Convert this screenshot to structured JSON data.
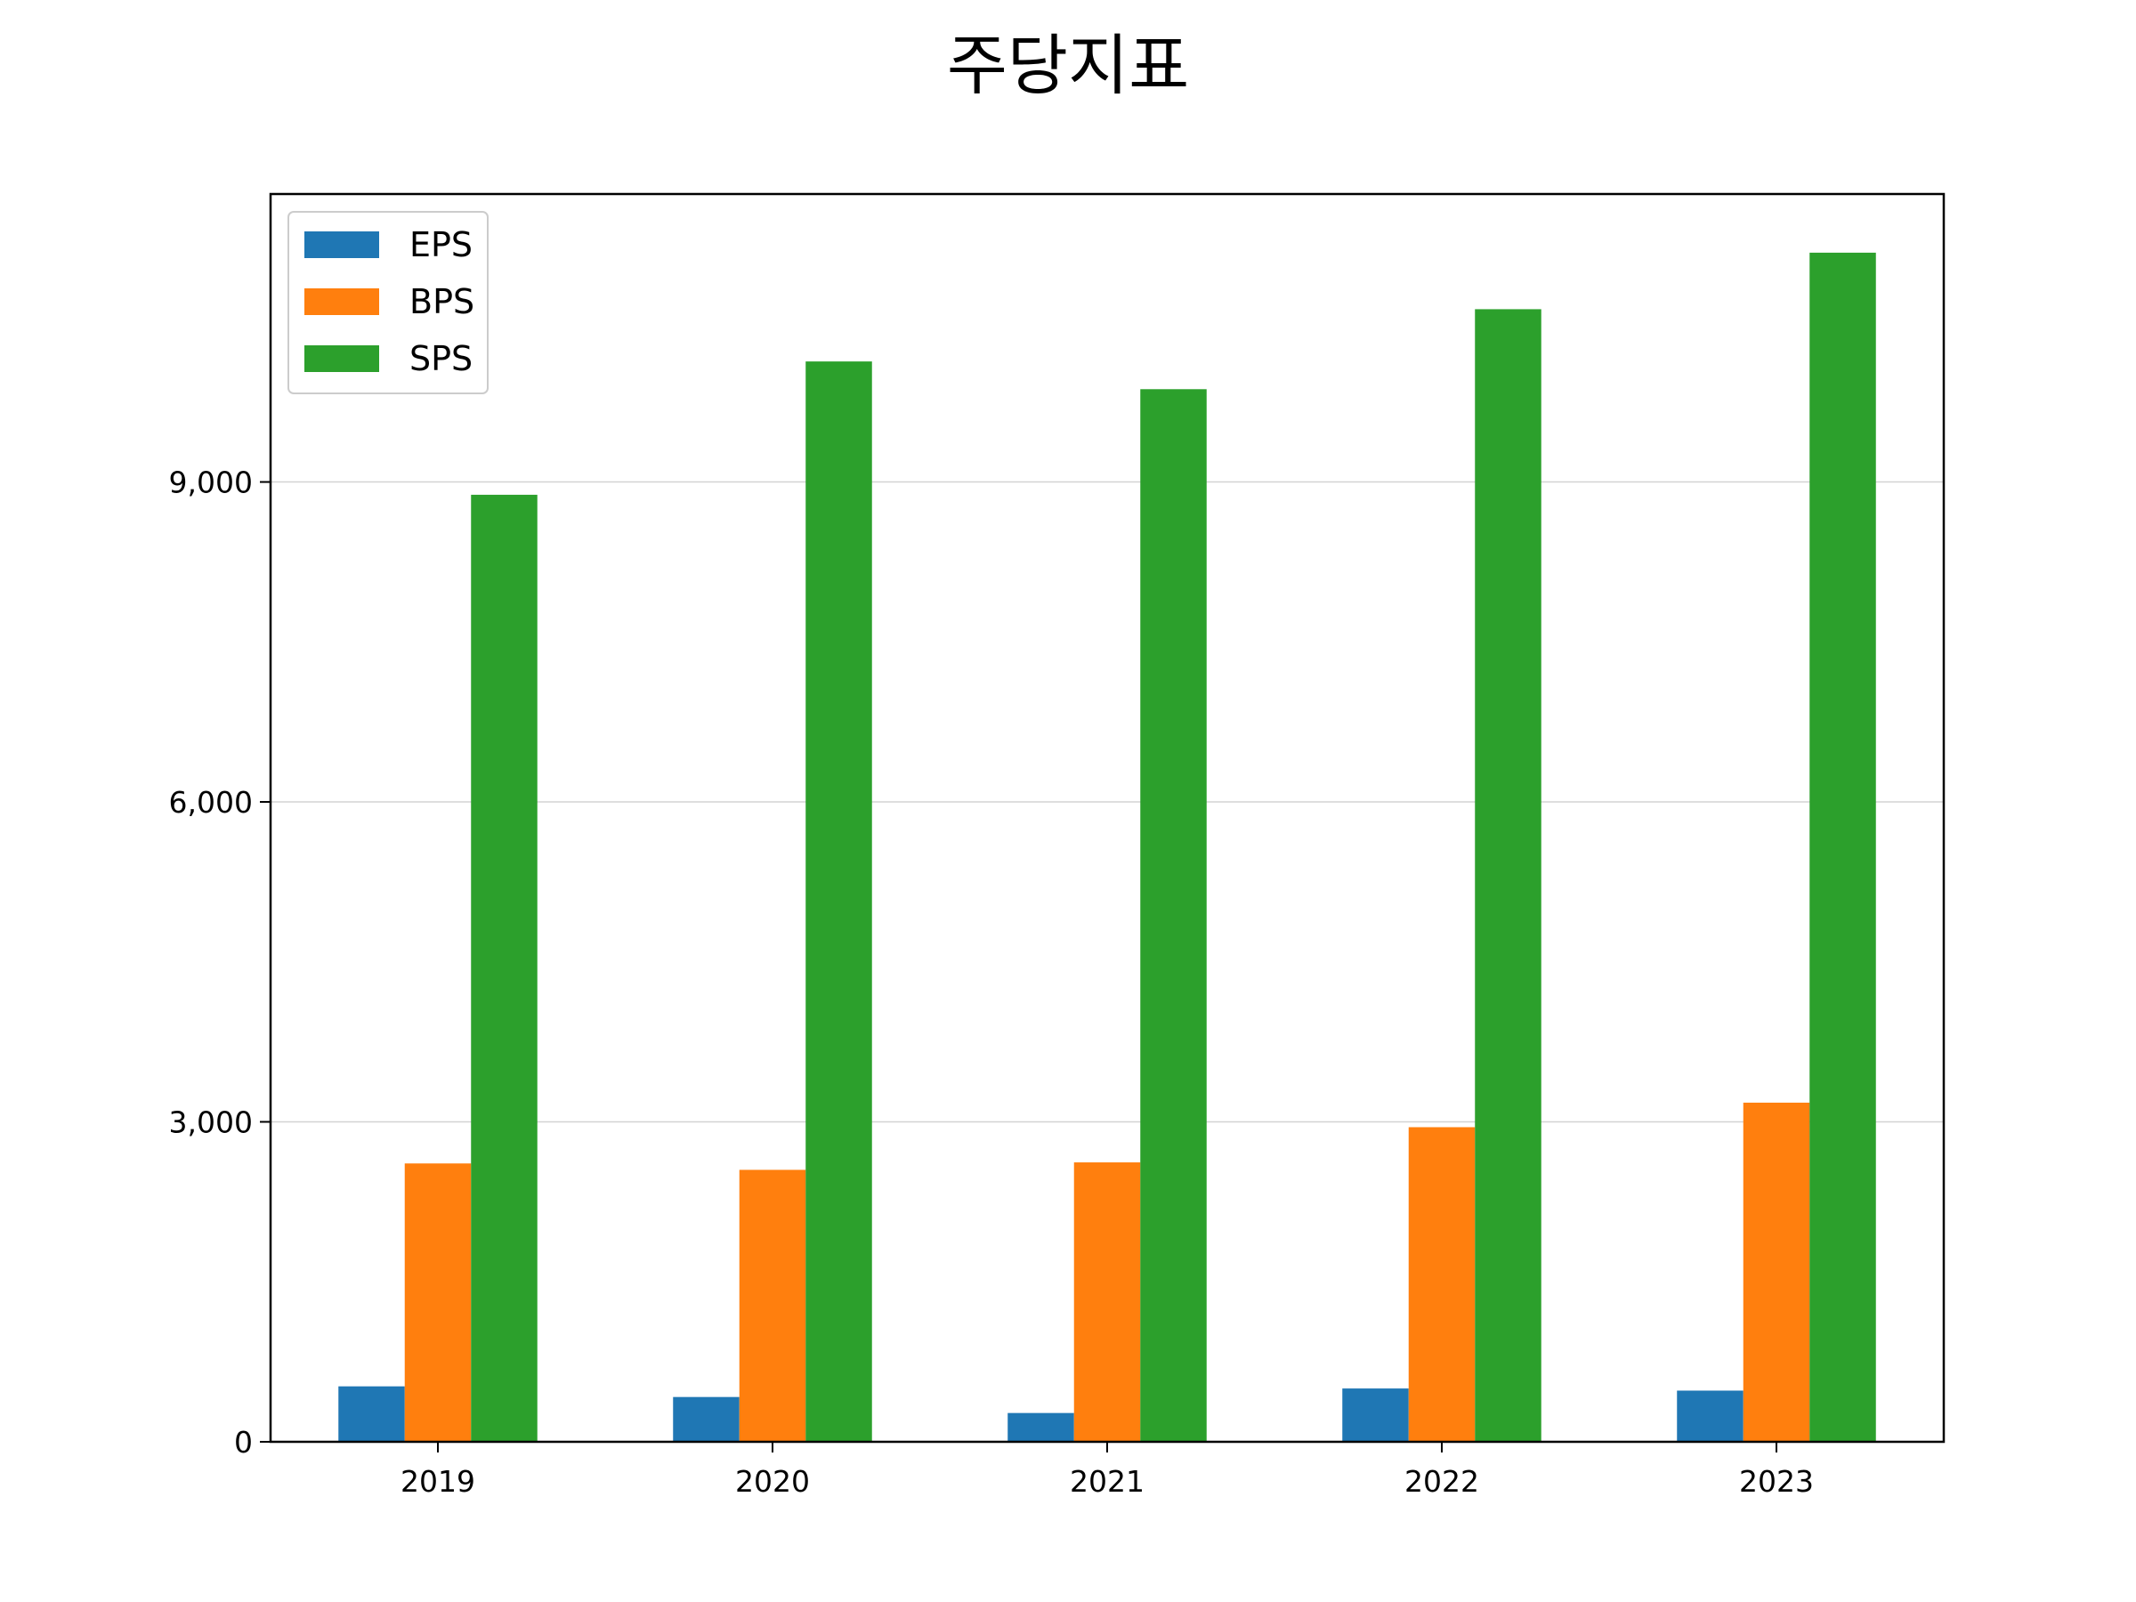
{
  "chart_data": {
    "type": "bar",
    "title": "주당지표",
    "categories": [
      "2019",
      "2020",
      "2021",
      "2022",
      "2023"
    ],
    "series": [
      {
        "name": "EPS",
        "color": "#1f77b4",
        "values": [
          520,
          420,
          270,
          500,
          480
        ]
      },
      {
        "name": "BPS",
        "color": "#ff7f0e",
        "values": [
          2610,
          2550,
          2620,
          2950,
          3180
        ]
      },
      {
        "name": "SPS",
        "color": "#2ca02c",
        "values": [
          8880,
          10130,
          9870,
          10620,
          11150
        ]
      }
    ],
    "ylim": [
      0,
      11700
    ],
    "yticks": [
      0,
      3000,
      6000,
      9000
    ],
    "ytick_labels": [
      "0",
      "3,000",
      "6,000",
      "9,000"
    ],
    "grid": "y",
    "legend_position": "top-left",
    "xlabel": "",
    "ylabel": ""
  }
}
